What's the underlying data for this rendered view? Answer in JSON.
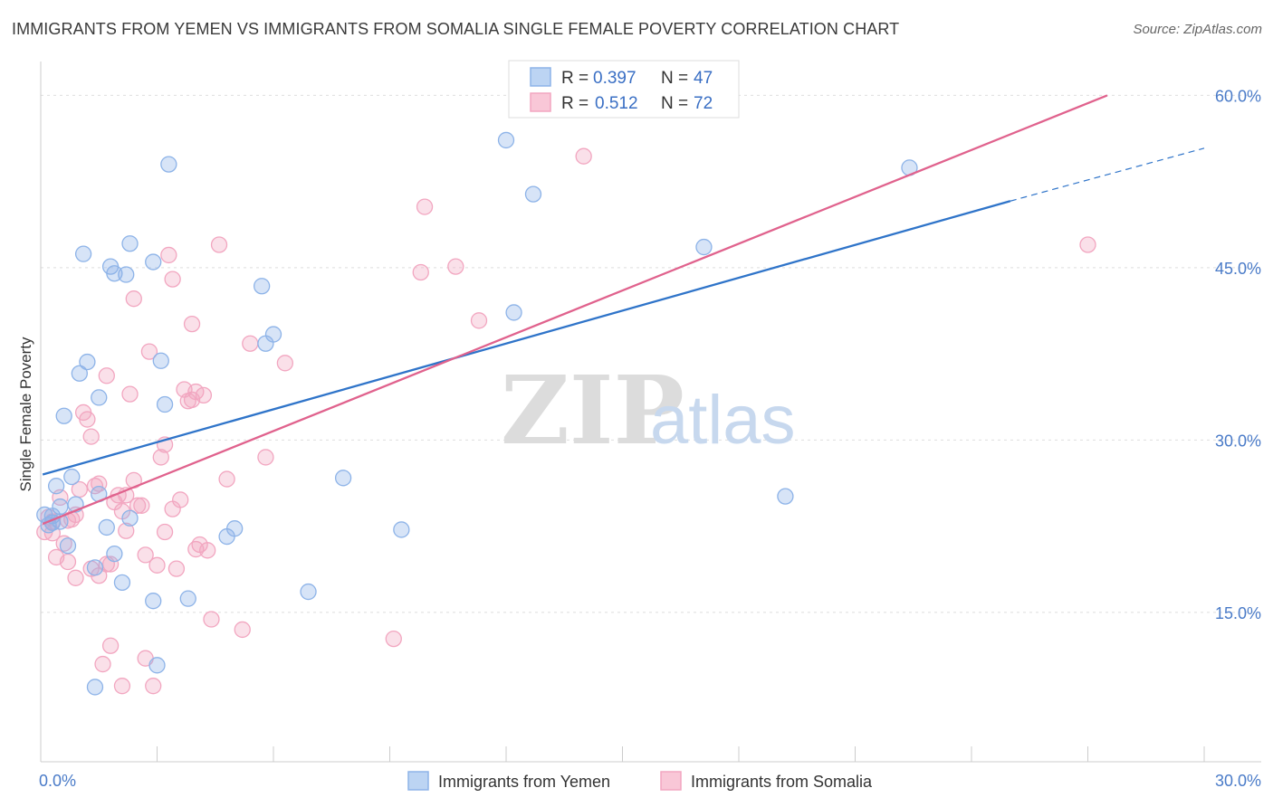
{
  "chart_data": {
    "type": "scatter",
    "title": "IMMIGRANTS FROM YEMEN VS IMMIGRANTS FROM SOMALIA SINGLE FEMALE POVERTY CORRELATION CHART",
    "source": "Source: ZipAtlas.com",
    "xlabel": "",
    "ylabel": "Single Female Poverty",
    "xlim": [
      0,
      30
    ],
    "ylim": [
      2,
      62
    ],
    "x_tick_labels": [
      "0.0%",
      "30.0%"
    ],
    "y_ticks": [
      15,
      30,
      45,
      60
    ],
    "y_tick_labels": [
      "15.0%",
      "30.0%",
      "45.0%",
      "60.0%"
    ],
    "watermark": {
      "zip": "ZIP",
      "atlas": "atlas"
    },
    "legend": {
      "r_label": "R =",
      "n_label": "N =",
      "entries": [
        {
          "r": "0.397",
          "n": "47"
        },
        {
          "r": "0.512",
          "n": "72"
        }
      ]
    },
    "series": [
      {
        "name": "Immigrants from Yemen",
        "color": "#8db3e8",
        "line_color": "#2f74c9",
        "trend": {
          "x0": 0.05,
          "y0": 27.0,
          "x1": 25.0,
          "y1": 50.8,
          "dash_to_x": 30.0,
          "dash_to_y": 55.4
        },
        "points": [
          [
            0.1,
            23.5
          ],
          [
            0.2,
            22.6
          ],
          [
            0.3,
            22.8
          ],
          [
            0.4,
            26.0
          ],
          [
            0.5,
            24.2
          ],
          [
            0.7,
            20.8
          ],
          [
            0.8,
            26.8
          ],
          [
            0.9,
            24.4
          ],
          [
            0.6,
            32.1
          ],
          [
            1.0,
            35.8
          ],
          [
            1.1,
            46.2
          ],
          [
            1.2,
            36.8
          ],
          [
            1.4,
            8.5
          ],
          [
            1.4,
            18.9
          ],
          [
            1.5,
            25.3
          ],
          [
            1.5,
            33.7
          ],
          [
            1.7,
            22.4
          ],
          [
            1.8,
            45.1
          ],
          [
            1.9,
            20.1
          ],
          [
            1.9,
            44.5
          ],
          [
            2.1,
            17.6
          ],
          [
            2.2,
            44.4
          ],
          [
            2.3,
            23.2
          ],
          [
            2.3,
            47.1
          ],
          [
            2.9,
            16.0
          ],
          [
            2.9,
            45.5
          ],
          [
            3.0,
            10.4
          ],
          [
            3.1,
            36.9
          ],
          [
            3.2,
            33.1
          ],
          [
            3.3,
            54.0
          ],
          [
            3.8,
            16.2
          ],
          [
            4.8,
            21.6
          ],
          [
            5.0,
            22.3
          ],
          [
            5.7,
            43.4
          ],
          [
            5.8,
            38.4
          ],
          [
            6.0,
            39.2
          ],
          [
            6.9,
            16.8
          ],
          [
            7.8,
            26.7
          ],
          [
            9.3,
            22.2
          ],
          [
            12.0,
            56.1
          ],
          [
            12.7,
            51.4
          ],
          [
            12.2,
            41.1
          ],
          [
            17.1,
            46.8
          ],
          [
            19.2,
            25.1
          ],
          [
            22.4,
            53.7
          ],
          [
            0.3,
            23.4
          ],
          [
            0.5,
            22.9
          ]
        ]
      },
      {
        "name": "Immigrants from Somalia",
        "color": "#f2a6c0",
        "line_color": "#e0628d",
        "trend": {
          "x0": 0.05,
          "y0": 22.7,
          "x1": 27.5,
          "y1": 60.0
        },
        "points": [
          [
            0.1,
            22.0
          ],
          [
            0.2,
            23.3
          ],
          [
            0.3,
            22.9
          ],
          [
            0.4,
            19.8
          ],
          [
            0.5,
            25.0
          ],
          [
            0.6,
            21.0
          ],
          [
            0.7,
            19.4
          ],
          [
            0.8,
            23.1
          ],
          [
            0.9,
            23.5
          ],
          [
            1.0,
            25.7
          ],
          [
            1.1,
            32.4
          ],
          [
            1.2,
            31.8
          ],
          [
            1.3,
            30.3
          ],
          [
            1.4,
            26.0
          ],
          [
            1.5,
            18.2
          ],
          [
            1.6,
            10.5
          ],
          [
            1.7,
            19.2
          ],
          [
            1.7,
            35.6
          ],
          [
            1.8,
            12.1
          ],
          [
            1.9,
            24.6
          ],
          [
            2.0,
            25.2
          ],
          [
            2.1,
            23.8
          ],
          [
            2.2,
            22.1
          ],
          [
            2.3,
            34.0
          ],
          [
            2.4,
            26.5
          ],
          [
            2.4,
            42.3
          ],
          [
            2.5,
            24.3
          ],
          [
            2.7,
            11.0
          ],
          [
            2.7,
            20.0
          ],
          [
            2.8,
            37.7
          ],
          [
            2.9,
            8.6
          ],
          [
            3.0,
            19.1
          ],
          [
            3.1,
            28.5
          ],
          [
            3.2,
            29.6
          ],
          [
            3.2,
            22.0
          ],
          [
            3.3,
            46.1
          ],
          [
            3.4,
            44.0
          ],
          [
            3.5,
            18.8
          ],
          [
            3.6,
            24.8
          ],
          [
            3.7,
            34.4
          ],
          [
            3.8,
            33.4
          ],
          [
            3.9,
            40.1
          ],
          [
            4.0,
            20.5
          ],
          [
            4.1,
            20.9
          ],
          [
            4.2,
            33.9
          ],
          [
            4.3,
            20.4
          ],
          [
            4.4,
            14.4
          ],
          [
            4.6,
            47.0
          ],
          [
            4.8,
            26.6
          ],
          [
            5.2,
            13.5
          ],
          [
            5.4,
            38.4
          ],
          [
            5.8,
            28.5
          ],
          [
            6.3,
            36.7
          ],
          [
            9.1,
            12.7
          ],
          [
            9.8,
            44.6
          ],
          [
            9.9,
            50.3
          ],
          [
            10.7,
            45.1
          ],
          [
            11.3,
            40.4
          ],
          [
            14.0,
            54.7
          ],
          [
            27.0,
            47.0
          ],
          [
            2.1,
            8.6
          ],
          [
            0.9,
            18.0
          ],
          [
            1.3,
            18.8
          ],
          [
            3.9,
            33.5
          ],
          [
            2.6,
            24.3
          ],
          [
            1.8,
            19.2
          ],
          [
            0.3,
            21.9
          ],
          [
            2.2,
            25.2
          ],
          [
            3.4,
            24.0
          ],
          [
            4.0,
            34.2
          ],
          [
            1.5,
            26.2
          ],
          [
            0.7,
            23.0
          ]
        ]
      }
    ]
  }
}
